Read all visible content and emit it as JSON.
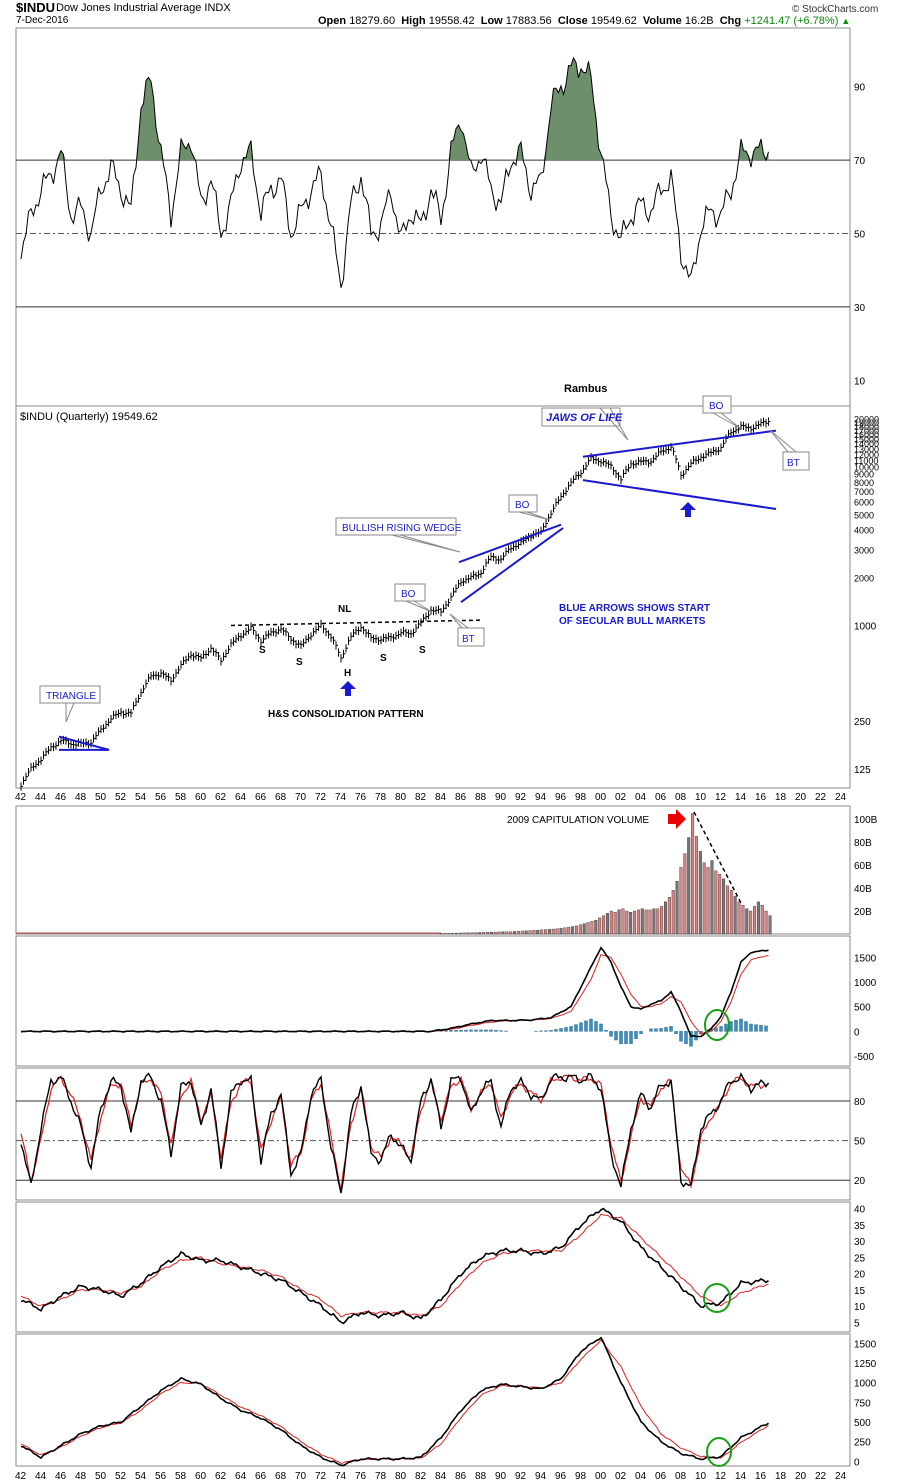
{
  "header": {
    "symbol": "$INDU",
    "name": "Dow Jones Industrial Average  INDX",
    "date": "7-Dec-2016",
    "open_label": "Open",
    "open": "18279.60",
    "high_label": "High",
    "high": "19558.42",
    "low_label": "Low",
    "low": "17883.56",
    "close_label": "Close",
    "close": "19549.62",
    "volume_label": "Volume",
    "volume": "16.2B",
    "chg_label": "Chg",
    "chg": "+1241.47 (+6.78%)",
    "credit": "© StockCharts.com",
    "main_label": "$INDU (Quarterly) 19549.62"
  },
  "chart_data": [
    {
      "type": "line",
      "panel": "rsi-top",
      "yticks": [
        90,
        70,
        50,
        30,
        10
      ],
      "ylim": [
        3,
        106
      ],
      "reference_lines": [
        70,
        50,
        30
      ],
      "x": [
        1942,
        1943,
        1944,
        1945,
        1946,
        1947,
        1948,
        1949,
        1950,
        1951,
        1952,
        1953,
        1954,
        1955,
        1956,
        1957,
        1958,
        1959,
        1960,
        1961,
        1962,
        1963,
        1964,
        1965,
        1966,
        1967,
        1968,
        1969,
        1970,
        1971,
        1972,
        1973,
        1974,
        1975,
        1976,
        1977,
        1978,
        1979,
        1980,
        1981,
        1982,
        1983,
        1984,
        1985,
        1986,
        1987,
        1988,
        1989,
        1990,
        1991,
        1992,
        1993,
        1994,
        1995,
        1996,
        1997,
        1998,
        1999,
        2000,
        2001,
        2002,
        2003,
        2004,
        2005,
        2006,
        2007,
        2008,
        2009,
        2010,
        2011,
        2012,
        2013,
        2014,
        2015,
        2016.9
      ],
      "values": [
        45,
        55,
        62,
        66,
        72,
        55,
        57,
        50,
        62,
        68,
        62,
        56,
        85,
        92,
        72,
        55,
        72,
        76,
        58,
        65,
        50,
        58,
        70,
        72,
        56,
        62,
        65,
        50,
        56,
        62,
        66,
        52,
        36,
        58,
        66,
        50,
        52,
        62,
        48,
        56,
        52,
        62,
        54,
        72,
        82,
        66,
        72,
        62,
        58,
        70,
        72,
        62,
        64,
        85,
        90,
        95,
        96,
        92,
        72,
        55,
        48,
        55,
        58,
        56,
        62,
        65,
        45,
        36,
        52,
        56,
        55,
        62,
        72,
        72,
        73
      ]
    },
    {
      "type": "line",
      "panel": "price",
      "label": "$INDU (Quarterly) 19549.62",
      "scale": "log",
      "yticks": [
        125,
        250,
        1000,
        2000,
        3000,
        4000,
        5000,
        6000,
        7000,
        8000,
        9000,
        10000,
        11000,
        12000,
        13000,
        14000,
        15000,
        16000,
        17000,
        18000,
        19000,
        20000
      ],
      "ylim": [
        95,
        24000
      ],
      "x": [
        1942,
        1943,
        1944,
        1945,
        1946,
        1947,
        1948,
        1949,
        1950,
        1951,
        1952,
        1953,
        1954,
        1955,
        1956,
        1957,
        1958,
        1959,
        1960,
        1961,
        1962,
        1963,
        1964,
        1965,
        1966,
        1967,
        1968,
        1969,
        1970,
        1971,
        1972,
        1973,
        1974,
        1975,
        1976,
        1977,
        1978,
        1979,
        1980,
        1981,
        1982,
        1983,
        1984,
        1985,
        1986,
        1987,
        1988,
        1989,
        1990,
        1991,
        1992,
        1993,
        1994,
        1995,
        1996,
        1997,
        1998,
        1999,
        2000,
        2001,
        2002,
        2003,
        2004,
        2005,
        2006,
        2007,
        2008,
        2009,
        2010,
        2011,
        2012,
        2013,
        2014,
        2015,
        2016.9
      ],
      "values": [
        100,
        125,
        145,
        170,
        190,
        180,
        180,
        185,
        220,
        260,
        285,
        280,
        380,
        480,
        500,
        450,
        560,
        660,
        620,
        720,
        600,
        760,
        870,
        960,
        800,
        900,
        950,
        820,
        740,
        880,
        1000,
        850,
        620,
        850,
        980,
        830,
        820,
        840,
        900,
        890,
        1040,
        1250,
        1220,
        1500,
        1900,
        2000,
        2150,
        2700,
        2600,
        3100,
        3300,
        3700,
        3850,
        5100,
        6450,
        7900,
        9200,
        11200,
        10800,
        10000,
        8300,
        10400,
        10700,
        10800,
        12400,
        13300,
        8800,
        10400,
        11500,
        12200,
        13100,
        16500,
        17800,
        17400,
        19550
      ],
      "annotations": [
        {
          "id": "triangle",
          "text": "TRIANGLE"
        },
        {
          "id": "nl",
          "text": "NL"
        },
        {
          "id": "s1",
          "text": "S"
        },
        {
          "id": "s2",
          "text": "S"
        },
        {
          "id": "h",
          "text": "H"
        },
        {
          "id": "s3",
          "text": "S"
        },
        {
          "id": "s4",
          "text": "S"
        },
        {
          "id": "hs",
          "text": "H&S CONSOLIDATION PATTERN"
        },
        {
          "id": "bo1",
          "text": "BO"
        },
        {
          "id": "bt1",
          "text": "BT"
        },
        {
          "id": "wedge",
          "text": "BULLISH RISING WEDGE"
        },
        {
          "id": "bo2",
          "text": "BO"
        },
        {
          "id": "jaws",
          "text": "JAWS OF LIFE"
        },
        {
          "id": "bo3",
          "text": "BO"
        },
        {
          "id": "bt3",
          "text": "BT"
        },
        {
          "id": "blue-arrows",
          "text": "BLUE ARROWS SHOWS START"
        },
        {
          "id": "blue-arrows-2",
          "text": "OF SECULAR BULL MARKETS"
        },
        {
          "id": "rambus",
          "text": "Rambus"
        }
      ],
      "xticks": [
        "42",
        "44",
        "46",
        "48",
        "50",
        "52",
        "54",
        "56",
        "58",
        "60",
        "62",
        "64",
        "66",
        "68",
        "70",
        "72",
        "74",
        "76",
        "78",
        "80",
        "82",
        "84",
        "86",
        "88",
        "90",
        "92",
        "94",
        "96",
        "98",
        "00",
        "02",
        "04",
        "06",
        "08",
        "10",
        "12",
        "14",
        "16",
        "18",
        "20",
        "22",
        "24"
      ]
    },
    {
      "type": "bar",
      "panel": "volume",
      "yticks": [
        "100B",
        "80B",
        "60B",
        "40B",
        "20B"
      ],
      "ylim": [
        0,
        108
      ],
      "annotation": "2009 CAPITULATION VOLUME",
      "start_year": 1984,
      "values": [
        0.5,
        0.5,
        0.6,
        0.7,
        0.8,
        0.9,
        1.0,
        1.0,
        1.1,
        1.2,
        1.3,
        1.4,
        1.5,
        1.6,
        1.7,
        1.8,
        1.9,
        2,
        2,
        2.2,
        2.4,
        2.6,
        2.8,
        3,
        3.2,
        3.4,
        3.6,
        3.8,
        4,
        4.3,
        4.6,
        5,
        5.5,
        6,
        6.5,
        7,
        8,
        9,
        10,
        11,
        12,
        14,
        16,
        18,
        20,
        19,
        21,
        22,
        20,
        19,
        20,
        21,
        22,
        21,
        21,
        22,
        22,
        24,
        28,
        32,
        38,
        46,
        58,
        70,
        84,
        105,
        85,
        72,
        62,
        58,
        64,
        55,
        52,
        48,
        42,
        38,
        33,
        28,
        25,
        22,
        20,
        24,
        28,
        25,
        20,
        16
      ]
    },
    {
      "type": "line",
      "panel": "ppo-macd",
      "yticks": [
        1500,
        1000,
        500,
        0,
        -500
      ],
      "ylim": [
        -620,
        1850
      ],
      "x": [
        1942,
        1983,
        1985,
        1987,
        1989,
        1991,
        1993,
        1995,
        1997,
        1999,
        2000,
        2001,
        2002,
        2003,
        2004,
        2005,
        2006,
        2007,
        2008,
        2009,
        2010,
        2011,
        2012,
        2013,
        2014,
        2015,
        2016.9
      ],
      "macd": [
        0,
        0,
        60,
        150,
        220,
        220,
        230,
        280,
        500,
        1300,
        1700,
        1400,
        900,
        500,
        450,
        550,
        620,
        800,
        400,
        -100,
        -100,
        50,
        300,
        800,
        1400,
        1600,
        1650
      ],
      "signal": [
        0,
        0,
        40,
        120,
        190,
        220,
        230,
        260,
        400,
        1050,
        1550,
        1500,
        1150,
        750,
        500,
        500,
        560,
        700,
        600,
        200,
        -50,
        0,
        200,
        600,
        1150,
        1450,
        1550
      ],
      "histogram_hint": "difference of macd and signal"
    },
    {
      "type": "line",
      "panel": "stochastic",
      "yticks": [
        80,
        50,
        20
      ],
      "ylim": [
        5,
        105
      ],
      "reference_lines": [
        80,
        50,
        20
      ],
      "x": [
        1942,
        1943,
        1944,
        1945,
        1946,
        1947,
        1948,
        1949,
        1950,
        1951,
        1952,
        1953,
        1954,
        1955,
        1956,
        1957,
        1958,
        1959,
        1960,
        1961,
        1962,
        1963,
        1964,
        1965,
        1966,
        1967,
        1968,
        1969,
        1970,
        1971,
        1972,
        1973,
        1974,
        1975,
        1976,
        1977,
        1978,
        1979,
        1980,
        1981,
        1982,
        1983,
        1984,
        1985,
        1986,
        1987,
        1988,
        1989,
        1990,
        1991,
        1992,
        1993,
        1994,
        1995,
        1996,
        1997,
        1998,
        1999,
        2000,
        2001,
        2002,
        2003,
        2004,
        2005,
        2006,
        2007,
        2008,
        2009,
        2010,
        2011,
        2012,
        2013,
        2014,
        2015,
        2016.9
      ],
      "k": [
        50,
        15,
        60,
        95,
        98,
        80,
        60,
        30,
        75,
        95,
        92,
        55,
        96,
        98,
        80,
        40,
        90,
        96,
        60,
        90,
        30,
        85,
        96,
        95,
        35,
        70,
        85,
        25,
        40,
        85,
        96,
        45,
        10,
        70,
        92,
        40,
        35,
        55,
        45,
        35,
        80,
        97,
        60,
        95,
        98,
        70,
        88,
        95,
        60,
        90,
        94,
        85,
        80,
        97,
        98,
        98,
        96,
        98,
        90,
        40,
        15,
        60,
        85,
        75,
        92,
        95,
        20,
        15,
        60,
        70,
        80,
        96,
        97,
        90,
        95
      ],
      "d": [
        55,
        20,
        50,
        90,
        97,
        85,
        65,
        35,
        68,
        92,
        93,
        62,
        92,
        97,
        85,
        48,
        84,
        95,
        66,
        84,
        38,
        78,
        94,
        95,
        42,
        65,
        82,
        32,
        40,
        80,
        94,
        52,
        14,
        62,
        90,
        46,
        37,
        53,
        47,
        37,
        74,
        95,
        66,
        91,
        97,
        74,
        86,
        94,
        66,
        86,
        93,
        86,
        81,
        95,
        98,
        98,
        96,
        97,
        92,
        48,
        18,
        54,
        82,
        76,
        90,
        95,
        28,
        16,
        52,
        68,
        78,
        94,
        97,
        91,
        93
      ]
    },
    {
      "type": "line",
      "panel": "adx",
      "yticks": [
        40,
        35,
        30,
        25,
        20,
        15,
        10,
        5
      ],
      "ylim": [
        2,
        42
      ],
      "x": [
        1942,
        1944,
        1946,
        1948,
        1950,
        1952,
        1954,
        1956,
        1958,
        1960,
        1962,
        1964,
        1966,
        1968,
        1970,
        1972,
        1974,
        1976,
        1978,
        1980,
        1982,
        1984,
        1986,
        1988,
        1990,
        1992,
        1994,
        1996,
        1998,
        2000,
        2002,
        2004,
        2006,
        2008,
        2010,
        2012,
        2014,
        2016.9
      ],
      "values": [
        12,
        9,
        13,
        16,
        15,
        13,
        17,
        22,
        26,
        24,
        24,
        22,
        20,
        18,
        14,
        10,
        5,
        8,
        7,
        8,
        6,
        12,
        20,
        25,
        27,
        27,
        26,
        28,
        35,
        40,
        36,
        28,
        22,
        16,
        10,
        11,
        17,
        18
      ],
      "signal": [
        13,
        10,
        12,
        15,
        15,
        14,
        16,
        21,
        24,
        25,
        23,
        22,
        21,
        19,
        15,
        12,
        7,
        8,
        8,
        8,
        7,
        10,
        17,
        23,
        26,
        27,
        27,
        27,
        32,
        38,
        37,
        31,
        25,
        19,
        13,
        10,
        14,
        17
      ]
    },
    {
      "type": "line",
      "panel": "bottom-osc",
      "yticks": [
        1500,
        1250,
        1000,
        750,
        500,
        250,
        0
      ],
      "ylim": [
        -60,
        1620
      ],
      "x": [
        1942,
        1944,
        1946,
        1948,
        1950,
        1952,
        1954,
        1956,
        1958,
        1960,
        1962,
        1964,
        1966,
        1968,
        1970,
        1972,
        1974,
        1976,
        1978,
        1980,
        1982,
        1984,
        1986,
        1988,
        1990,
        1992,
        1994,
        1996,
        1998,
        2000,
        2002,
        2004,
        2006,
        2008,
        2010,
        2012,
        2014,
        2016.9
      ],
      "values": [
        200,
        50,
        200,
        350,
        450,
        500,
        700,
        900,
        1050,
        980,
        800,
        650,
        550,
        400,
        200,
        50,
        -50,
        30,
        30,
        30,
        50,
        300,
        650,
        900,
        980,
        950,
        920,
        1050,
        1400,
        1580,
        1000,
        500,
        250,
        100,
        30,
        60,
        300,
        500
      ],
      "signal": [
        220,
        80,
        180,
        320,
        430,
        490,
        650,
        860,
        1000,
        990,
        840,
        690,
        580,
        440,
        250,
        90,
        -20,
        20,
        30,
        30,
        40,
        220,
        560,
        840,
        960,
        960,
        930,
        1000,
        1300,
        1540,
        1200,
        700,
        350,
        170,
        60,
        40,
        240,
        470
      ]
    }
  ]
}
